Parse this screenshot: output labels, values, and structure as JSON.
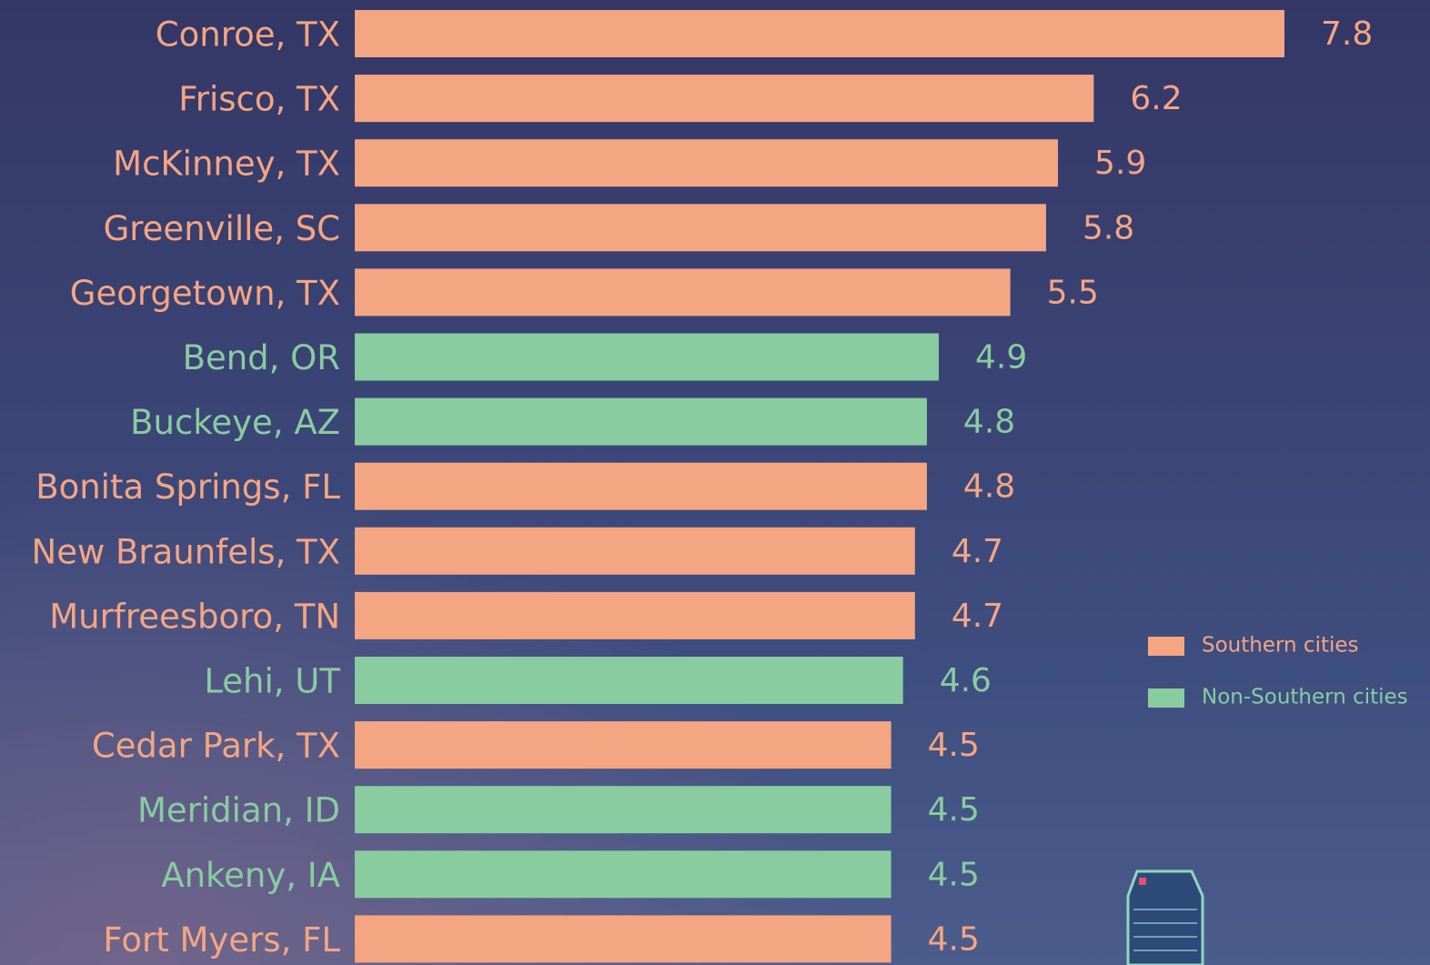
{
  "chart_data": {
    "type": "bar",
    "orientation": "horizontal",
    "categories": [
      "Conroe, TX",
      "Frisco, TX",
      "McKinney, TX",
      "Greenville, SC",
      "Georgetown, TX",
      "Bend, OR",
      "Buckeye, AZ",
      "Bonita Springs, FL",
      "New Braunfels, TX",
      "Murfreesboro, TN",
      "Lehi, UT",
      "Cedar Park, TX",
      "Meridian, ID",
      "Ankeny, IA",
      "Fort Myers, FL"
    ],
    "series": [
      {
        "name": "Southern cities",
        "color": "#f4a582",
        "values": [
          7.8,
          6.2,
          5.9,
          5.8,
          5.5,
          null,
          null,
          4.8,
          4.7,
          4.7,
          null,
          4.5,
          null,
          null,
          4.5
        ]
      },
      {
        "name": "Non-Southern cities",
        "color": "#88cca0",
        "values": [
          null,
          null,
          null,
          null,
          null,
          4.9,
          4.8,
          null,
          null,
          null,
          4.6,
          null,
          4.5,
          4.5,
          null
        ]
      }
    ]
  }
}
